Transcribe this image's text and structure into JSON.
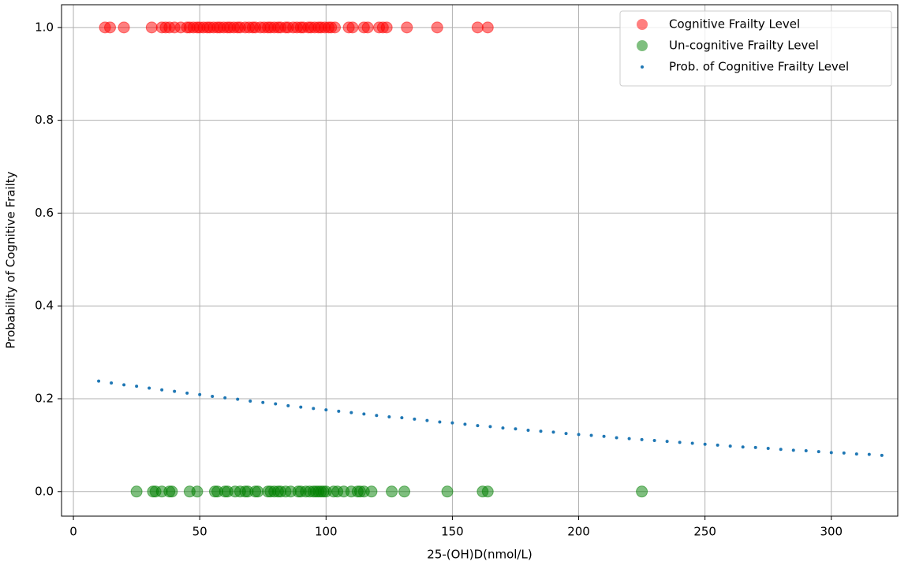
{
  "chart_data": {
    "type": "scatter",
    "xlabel": "25-(OH)D(nmol/L)",
    "ylabel": "Probability of Cognitive Frailty",
    "xlim": [
      -4.7,
      326.3
    ],
    "ylim": [
      -0.053,
      1.049
    ],
    "xticks": [
      0,
      50,
      100,
      150,
      200,
      250,
      300
    ],
    "yticks": [
      {
        "value": 0,
        "label": "0.0"
      },
      0.2,
      0.4,
      0.6,
      0.8,
      {
        "value": 1,
        "label": "1.0"
      }
    ],
    "grid": true,
    "legend": "upper right",
    "series": [
      {
        "name": "Cognitive Frailty Level",
        "color": "#ff0000",
        "alpha": 0.5,
        "x": [
          12.5,
          14.5,
          20,
          31,
          35,
          36.5,
          38,
          40,
          42.5,
          45,
          46,
          47.5,
          49,
          50,
          51.5,
          53,
          54,
          55.5,
          57,
          58,
          59.5,
          61,
          62,
          63.5,
          65,
          66,
          68,
          69.5,
          71,
          72,
          74,
          75.5,
          77,
          78,
          79.5,
          81,
          82,
          84,
          85,
          87,
          88.5,
          90,
          91,
          93,
          94,
          95.5,
          97,
          98,
          99.5,
          101,
          102,
          103.5,
          109,
          110.5,
          115,
          116.5,
          121,
          122.5,
          124,
          132,
          144,
          160,
          164
        ],
        "values": [
          1,
          1,
          1,
          1,
          1,
          1,
          1,
          1,
          1,
          1,
          1,
          1,
          1,
          1,
          1,
          1,
          1,
          1,
          1,
          1,
          1,
          1,
          1,
          1,
          1,
          1,
          1,
          1,
          1,
          1,
          1,
          1,
          1,
          1,
          1,
          1,
          1,
          1,
          1,
          1,
          1,
          1,
          1,
          1,
          1,
          1,
          1,
          1,
          1,
          1,
          1,
          1,
          1,
          1,
          1,
          1,
          1,
          1,
          1,
          1,
          1,
          1,
          1
        ]
      },
      {
        "name": "Un-cognitive Frailty Level",
        "color": "#008000",
        "alpha": 0.5,
        "x": [
          25,
          31.5,
          32.5,
          35,
          38,
          39,
          46,
          49,
          56,
          57,
          60,
          61,
          64,
          66,
          68,
          69,
          72,
          73,
          77,
          78,
          79.5,
          81,
          82,
          84,
          86,
          89,
          90,
          92,
          93.5,
          95,
          96,
          97,
          98,
          99,
          100,
          103,
          104.5,
          107,
          110,
          112.5,
          113.5,
          115,
          118,
          126,
          131,
          148,
          162,
          164,
          225
        ],
        "values": [
          0,
          0,
          0,
          0,
          0,
          0,
          0,
          0,
          0,
          0,
          0,
          0,
          0,
          0,
          0,
          0,
          0,
          0,
          0,
          0,
          0,
          0,
          0,
          0,
          0,
          0,
          0,
          0,
          0,
          0,
          0,
          0,
          0,
          0,
          0,
          0,
          0,
          0,
          0,
          0,
          0,
          0,
          0,
          0,
          0,
          0,
          0,
          0,
          0
        ]
      },
      {
        "name": "Prob. of Cognitive Frailty Level",
        "color": "#1f77b4",
        "alpha": 1,
        "x": [
          10,
          15,
          20,
          25,
          30,
          35,
          40,
          45,
          50,
          55,
          60,
          65,
          70,
          75,
          80,
          85,
          90,
          95,
          100,
          105,
          110,
          115,
          120,
          125,
          130,
          135,
          140,
          145,
          150,
          155,
          160,
          165,
          170,
          175,
          180,
          185,
          190,
          195,
          200,
          205,
          210,
          215,
          220,
          225,
          230,
          235,
          240,
          245,
          250,
          255,
          260,
          265,
          270,
          275,
          280,
          285,
          290,
          295,
          300,
          305,
          310,
          315,
          320
        ],
        "values": [
          0.238,
          0.234,
          0.23,
          0.227,
          0.223,
          0.219,
          0.216,
          0.212,
          0.209,
          0.205,
          0.202,
          0.199,
          0.195,
          0.192,
          0.189,
          0.185,
          0.182,
          0.179,
          0.176,
          0.173,
          0.17,
          0.167,
          0.164,
          0.161,
          0.159,
          0.156,
          0.153,
          0.15,
          0.148,
          0.145,
          0.142,
          0.14,
          0.137,
          0.135,
          0.132,
          0.13,
          0.128,
          0.125,
          0.123,
          0.121,
          0.119,
          0.116,
          0.114,
          0.112,
          0.11,
          0.108,
          0.106,
          0.104,
          0.102,
          0.1,
          0.098,
          0.096,
          0.095,
          0.093,
          0.091,
          0.089,
          0.088,
          0.086,
          0.084,
          0.083,
          0.081,
          0.08,
          0.078
        ]
      }
    ]
  }
}
